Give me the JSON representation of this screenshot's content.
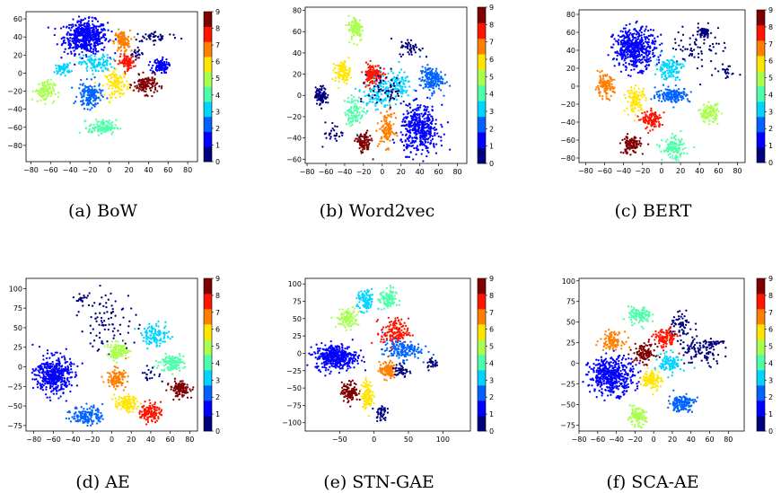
{
  "colormap": {
    "name": "jet",
    "colors": [
      "#00007f",
      "#0000ff",
      "#0063ff",
      "#00d4ff",
      "#4effa9",
      "#a9ff4e",
      "#ffe500",
      "#ff7f00",
      "#ff1400",
      "#7f0000"
    ],
    "ticks": [
      "0",
      "1",
      "2",
      "3",
      "4",
      "5",
      "6",
      "7",
      "8",
      "9"
    ]
  },
  "chart_data": [
    {
      "type": "scatter",
      "caption": "(a) BoW",
      "xlim": [
        -85,
        90
      ],
      "ylim": [
        -98,
        68
      ],
      "xticks": [
        -80,
        -60,
        -40,
        -20,
        0,
        20,
        40,
        60,
        80
      ],
      "yticks": [
        -80,
        -60,
        -40,
        -20,
        0,
        20,
        40,
        60
      ],
      "clusters": [
        {
          "label": 1,
          "x": -24,
          "y": 40,
          "sx": 11,
          "sy": 9,
          "n": 520
        },
        {
          "label": 7,
          "x": 13,
          "y": 35,
          "sx": 4,
          "sy": 6,
          "n": 110
        },
        {
          "label": 0,
          "x": 48,
          "y": 40,
          "sx": 12,
          "sy": 3,
          "n": 45
        },
        {
          "label": 1,
          "x": 52,
          "y": 8,
          "sx": 4,
          "sy": 4,
          "n": 110
        },
        {
          "label": 3,
          "x": -13,
          "y": 10,
          "sx": 8,
          "sy": 5,
          "n": 110
        },
        {
          "label": 3,
          "x": -47,
          "y": 5,
          "sx": 4,
          "sy": 3,
          "n": 60
        },
        {
          "label": 8,
          "x": 18,
          "y": 12,
          "sx": 4,
          "sy": 4,
          "n": 90
        },
        {
          "label": 6,
          "x": 8,
          "y": -12,
          "sx": 6,
          "sy": 7,
          "n": 110
        },
        {
          "label": 9,
          "x": 37,
          "y": -13,
          "sx": 6,
          "sy": 5,
          "n": 130
        },
        {
          "label": 2,
          "x": -20,
          "y": -25,
          "sx": 6,
          "sy": 7,
          "n": 150
        },
        {
          "label": 5,
          "x": -66,
          "y": -20,
          "sx": 5,
          "sy": 6,
          "n": 110
        },
        {
          "label": 4,
          "x": -7,
          "y": -60,
          "sx": 7,
          "sy": 4,
          "n": 110
        },
        {
          "label": 0,
          "x": 28,
          "y": 22,
          "sx": 3,
          "sy": 3,
          "n": 20
        }
      ]
    },
    {
      "type": "scatter",
      "caption": "(b) Word2vec",
      "xlim": [
        -82,
        90
      ],
      "ylim": [
        -64,
        83
      ],
      "xticks": [
        -80,
        -60,
        -40,
        -20,
        0,
        20,
        40,
        60,
        80
      ],
      "yticks": [
        -60,
        -40,
        -20,
        0,
        20,
        40,
        60,
        80
      ],
      "clusters": [
        {
          "label": 5,
          "x": -28,
          "y": 63,
          "sx": 4,
          "sy": 6,
          "n": 100
        },
        {
          "label": 0,
          "x": 30,
          "y": 45,
          "sx": 6,
          "sy": 4,
          "n": 45
        },
        {
          "label": 8,
          "x": -10,
          "y": 20,
          "sx": 5,
          "sy": 5,
          "n": 140
        },
        {
          "label": 6,
          "x": -42,
          "y": 22,
          "sx": 4,
          "sy": 5,
          "n": 100
        },
        {
          "label": 2,
          "x": 52,
          "y": 15,
          "sx": 6,
          "sy": 6,
          "n": 170
        },
        {
          "label": 3,
          "x": 15,
          "y": 10,
          "sx": 8,
          "sy": 6,
          "n": 110
        },
        {
          "label": 0,
          "x": -65,
          "y": 0,
          "sx": 3,
          "sy": 4,
          "n": 110
        },
        {
          "label": 4,
          "x": -30,
          "y": -15,
          "sx": 5,
          "sy": 7,
          "n": 100
        },
        {
          "label": 3,
          "x": -5,
          "y": 0,
          "sx": 8,
          "sy": 7,
          "n": 100
        },
        {
          "label": 1,
          "x": 40,
          "y": -32,
          "sx": 10,
          "sy": 11,
          "n": 420
        },
        {
          "label": 7,
          "x": 5,
          "y": -32,
          "sx": 4,
          "sy": 8,
          "n": 110
        },
        {
          "label": 9,
          "x": -20,
          "y": -45,
          "sx": 4,
          "sy": 5,
          "n": 100
        },
        {
          "label": 0,
          "x": -50,
          "y": -35,
          "sx": 6,
          "sy": 5,
          "n": 30
        },
        {
          "label": 0,
          "x": 5,
          "y": 5,
          "sx": 10,
          "sy": 9,
          "n": 60
        }
      ]
    },
    {
      "type": "scatter",
      "caption": "(c) BERT",
      "xlim": [
        -87,
        88
      ],
      "ylim": [
        -85,
        85
      ],
      "xticks": [
        -80,
        -60,
        -40,
        -20,
        0,
        20,
        40,
        60,
        80
      ],
      "yticks": [
        -80,
        -60,
        -40,
        -20,
        0,
        20,
        40,
        60,
        80
      ],
      "clusters": [
        {
          "label": 1,
          "x": -28,
          "y": 42,
          "sx": 11,
          "sy": 11,
          "n": 480
        },
        {
          "label": 0,
          "x": 38,
          "y": 43,
          "sx": 14,
          "sy": 14,
          "n": 70
        },
        {
          "label": 0,
          "x": 45,
          "y": 60,
          "sx": 3,
          "sy": 3,
          "n": 50
        },
        {
          "label": 3,
          "x": 8,
          "y": 20,
          "sx": 7,
          "sy": 6,
          "n": 120
        },
        {
          "label": 7,
          "x": -60,
          "y": 0,
          "sx": 5,
          "sy": 6,
          "n": 120
        },
        {
          "label": 6,
          "x": -27,
          "y": -15,
          "sx": 5,
          "sy": 7,
          "n": 110
        },
        {
          "label": 2,
          "x": 12,
          "y": -10,
          "sx": 9,
          "sy": 4,
          "n": 160
        },
        {
          "label": 8,
          "x": -10,
          "y": -38,
          "sx": 5,
          "sy": 5,
          "n": 120
        },
        {
          "label": 5,
          "x": 50,
          "y": -30,
          "sx": 5,
          "sy": 5,
          "n": 110
        },
        {
          "label": 4,
          "x": 13,
          "y": -70,
          "sx": 6,
          "sy": 6,
          "n": 120
        },
        {
          "label": 9,
          "x": -32,
          "y": -65,
          "sx": 5,
          "sy": 5,
          "n": 120
        },
        {
          "label": 0,
          "x": 70,
          "y": 15,
          "sx": 6,
          "sy": 3,
          "n": 20
        }
      ]
    },
    {
      "type": "scatter",
      "caption": "(d) AE",
      "xlim": [
        -88,
        88
      ],
      "ylim": [
        -82,
        113
      ],
      "xticks": [
        -80,
        -60,
        -40,
        -20,
        0,
        20,
        40,
        60,
        80
      ],
      "yticks": [
        -75,
        -50,
        -25,
        0,
        25,
        50,
        75,
        100
      ],
      "clusters": [
        {
          "label": 0,
          "x": -5,
          "y": 60,
          "sx": 15,
          "sy": 20,
          "n": 90
        },
        {
          "label": 0,
          "x": -30,
          "y": 88,
          "sx": 3,
          "sy": 3,
          "n": 15
        },
        {
          "label": 3,
          "x": 45,
          "y": 40,
          "sx": 7,
          "sy": 7,
          "n": 110
        },
        {
          "label": 5,
          "x": 7,
          "y": 20,
          "sx": 6,
          "sy": 5,
          "n": 110
        },
        {
          "label": 4,
          "x": 62,
          "y": 5,
          "sx": 6,
          "sy": 5,
          "n": 120
        },
        {
          "label": 1,
          "x": -60,
          "y": -10,
          "sx": 9,
          "sy": 12,
          "n": 420
        },
        {
          "label": 7,
          "x": 5,
          "y": -15,
          "sx": 5,
          "sy": 6,
          "n": 110
        },
        {
          "label": 9,
          "x": 70,
          "y": -28,
          "sx": 5,
          "sy": 5,
          "n": 120
        },
        {
          "label": 6,
          "x": 15,
          "y": -47,
          "sx": 6,
          "sy": 5,
          "n": 110
        },
        {
          "label": 8,
          "x": 40,
          "y": -58,
          "sx": 5,
          "sy": 6,
          "n": 120
        },
        {
          "label": 2,
          "x": -25,
          "y": -62,
          "sx": 8,
          "sy": 6,
          "n": 150
        },
        {
          "label": 0,
          "x": 40,
          "y": -10,
          "sx": 5,
          "sy": 5,
          "n": 20
        }
      ]
    },
    {
      "type": "scatter",
      "caption": "(e) STN-GAE",
      "xlim": [
        -100,
        140
      ],
      "ylim": [
        -112,
        108
      ],
      "xticks": [
        -50,
        0,
        50,
        100
      ],
      "yticks": [
        -100,
        -75,
        -50,
        -25,
        0,
        25,
        50,
        75,
        100
      ],
      "clusters": [
        {
          "label": 5,
          "x": -38,
          "y": 50,
          "sx": 8,
          "sy": 7,
          "n": 110
        },
        {
          "label": 3,
          "x": -12,
          "y": 75,
          "sx": 6,
          "sy": 8,
          "n": 90
        },
        {
          "label": 4,
          "x": 20,
          "y": 78,
          "sx": 6,
          "sy": 8,
          "n": 100
        },
        {
          "label": 8,
          "x": 30,
          "y": 30,
          "sx": 10,
          "sy": 10,
          "n": 150
        },
        {
          "label": 1,
          "x": -55,
          "y": -5,
          "sx": 15,
          "sy": 9,
          "n": 400
        },
        {
          "label": 2,
          "x": 40,
          "y": 5,
          "sx": 14,
          "sy": 7,
          "n": 150
        },
        {
          "label": 7,
          "x": 20,
          "y": -25,
          "sx": 6,
          "sy": 6,
          "n": 110
        },
        {
          "label": 9,
          "x": -35,
          "y": -55,
          "sx": 6,
          "sy": 7,
          "n": 110
        },
        {
          "label": 6,
          "x": -10,
          "y": -60,
          "sx": 4,
          "sy": 10,
          "n": 110
        },
        {
          "label": 0,
          "x": 10,
          "y": -85,
          "sx": 4,
          "sy": 6,
          "n": 45
        },
        {
          "label": 0,
          "x": 40,
          "y": -25,
          "sx": 5,
          "sy": 6,
          "n": 45
        },
        {
          "label": 0,
          "x": 85,
          "y": -15,
          "sx": 5,
          "sy": 4,
          "n": 25
        }
      ]
    },
    {
      "type": "scatter",
      "caption": "(f) SCA-AE",
      "xlim": [
        -80,
        97
      ],
      "ylim": [
        -82,
        103
      ],
      "xticks": [
        -80,
        -60,
        -40,
        -20,
        0,
        20,
        40,
        60,
        80
      ],
      "yticks": [
        -75,
        -50,
        -25,
        0,
        25,
        50,
        75,
        100
      ],
      "clusters": [
        {
          "label": 4,
          "x": -15,
          "y": 58,
          "sx": 6,
          "sy": 5,
          "n": 110
        },
        {
          "label": 0,
          "x": 30,
          "y": 45,
          "sx": 6,
          "sy": 7,
          "n": 60
        },
        {
          "label": 0,
          "x": 50,
          "y": 15,
          "sx": 12,
          "sy": 10,
          "n": 110
        },
        {
          "label": 7,
          "x": -45,
          "y": 28,
          "sx": 6,
          "sy": 5,
          "n": 110
        },
        {
          "label": 9,
          "x": -10,
          "y": 12,
          "sx": 6,
          "sy": 6,
          "n": 110
        },
        {
          "label": 8,
          "x": 12,
          "y": 30,
          "sx": 6,
          "sy": 6,
          "n": 110
        },
        {
          "label": 3,
          "x": 18,
          "y": 0,
          "sx": 6,
          "sy": 6,
          "n": 110
        },
        {
          "label": 1,
          "x": -45,
          "y": -15,
          "sx": 12,
          "sy": 11,
          "n": 450
        },
        {
          "label": 6,
          "x": -2,
          "y": -20,
          "sx": 5,
          "sy": 6,
          "n": 110
        },
        {
          "label": 2,
          "x": 30,
          "y": -48,
          "sx": 7,
          "sy": 5,
          "n": 140
        },
        {
          "label": 5,
          "x": -18,
          "y": -65,
          "sx": 5,
          "sy": 5,
          "n": 110
        },
        {
          "label": 0,
          "x": 65,
          "y": 25,
          "sx": 6,
          "sy": 2,
          "n": 20
        }
      ]
    }
  ]
}
